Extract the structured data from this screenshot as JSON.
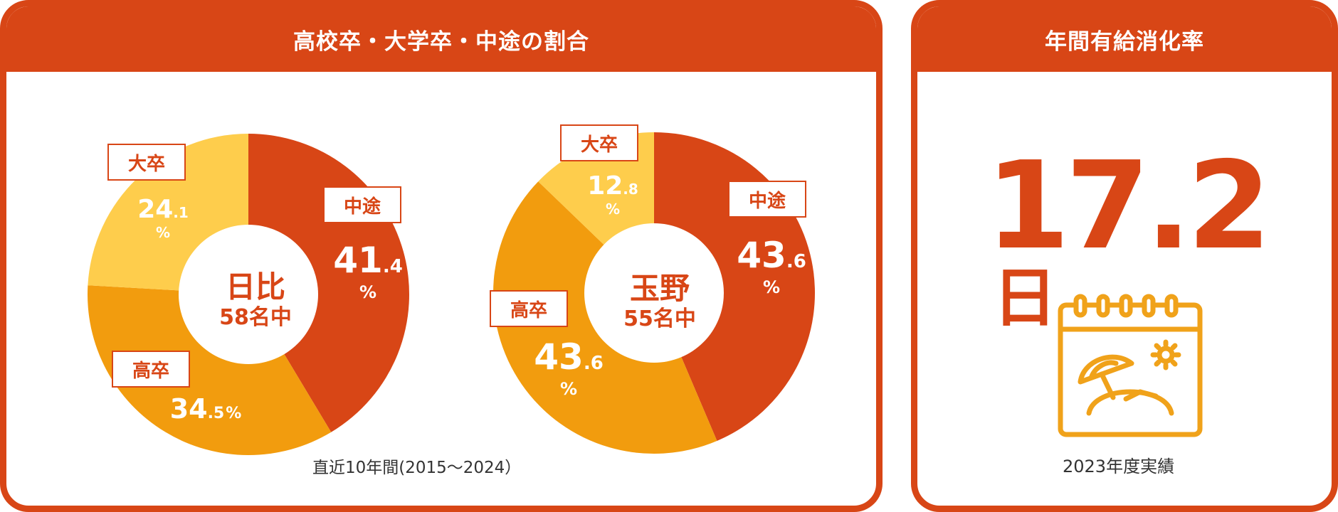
{
  "colors": {
    "accent": "#d84616",
    "chukan": "#d84616",
    "kousotsu": "#f29c0e",
    "daisotsu": "#fecd4c",
    "icon": "#f0a21a"
  },
  "left_panel": {
    "title": "高校卒・大学卒・中途の割合",
    "note": "直近10年間(2015～2024）"
  },
  "right_panel": {
    "title": "年間有給消化率",
    "value_int": "17",
    "value_dec": ".2",
    "unit": "日",
    "icon": "calendar-beach-icon",
    "note": "2023年度実績"
  },
  "chart_data": [
    {
      "type": "pie",
      "center_name": "日比",
      "center_count": "58名中",
      "slices": [
        {
          "label": "中途",
          "value": 41.4,
          "int": "41",
          "dec": ".4",
          "unit": "%",
          "color": "#d84616"
        },
        {
          "label": "高卒",
          "value": 34.5,
          "int": "34",
          "dec": ".5",
          "unit": "%",
          "color": "#f29c0e"
        },
        {
          "label": "大卒",
          "value": 24.1,
          "int": "24",
          "dec": ".1",
          "unit": "%",
          "color": "#fecd4c"
        }
      ]
    },
    {
      "type": "pie",
      "center_name": "玉野",
      "center_count": "55名中",
      "slices": [
        {
          "label": "中途",
          "value": 43.6,
          "int": "43",
          "dec": ".6",
          "unit": "%",
          "color": "#d84616"
        },
        {
          "label": "高卒",
          "value": 43.6,
          "int": "43",
          "dec": ".6",
          "unit": "%",
          "color": "#f29c0e"
        },
        {
          "label": "大卒",
          "value": 12.8,
          "int": "12",
          "dec": ".8",
          "unit": "%",
          "color": "#fecd4c"
        }
      ]
    }
  ]
}
